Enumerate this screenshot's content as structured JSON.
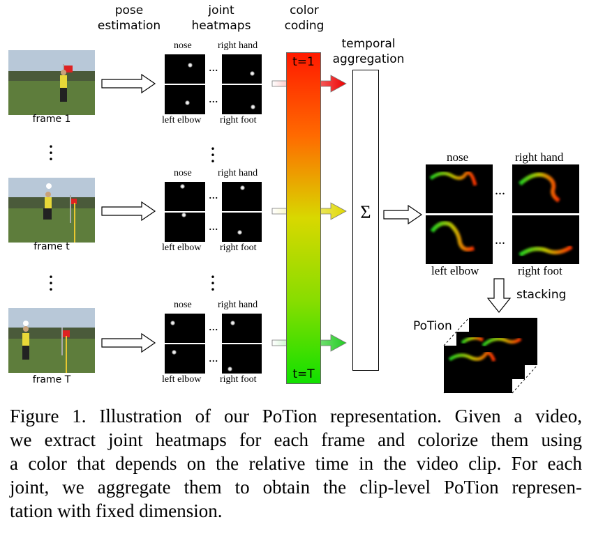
{
  "headers": {
    "pose_estimation": [
      "pose",
      "estimation"
    ],
    "joint_heatmaps": [
      "joint",
      "heatmaps"
    ],
    "color_coding": [
      "color",
      "coding"
    ],
    "temporal_aggregation": [
      "temporal",
      "aggregation"
    ]
  },
  "frames": [
    {
      "label": "frame 1"
    },
    {
      "label": "frame t"
    },
    {
      "label": "frame T"
    }
  ],
  "joints": {
    "nose": "nose",
    "right_hand": "right hand",
    "left_elbow": "left elbow",
    "right_foot": "right foot"
  },
  "color_bar": {
    "top_label": "t=1",
    "bottom_label": "t=T",
    "top_color": "#ff0000",
    "mid_color": "#dddd00",
    "bottom_color": "#00dd00"
  },
  "sum_symbol": "Σ",
  "ellipsis": "...",
  "stacking_label": "stacking",
  "potion_label": "PoTion",
  "caption": {
    "lines": [
      "Figure 1. Illustration of our PoTion representation. Given a video,",
      "we extract joint heatmaps for each frame and colorize them using",
      "a color that depends on the relative time in the video clip. For each",
      "joint, we aggregate them to obtain the clip-level PoTion represen-",
      "tation with fixed dimension."
    ]
  }
}
